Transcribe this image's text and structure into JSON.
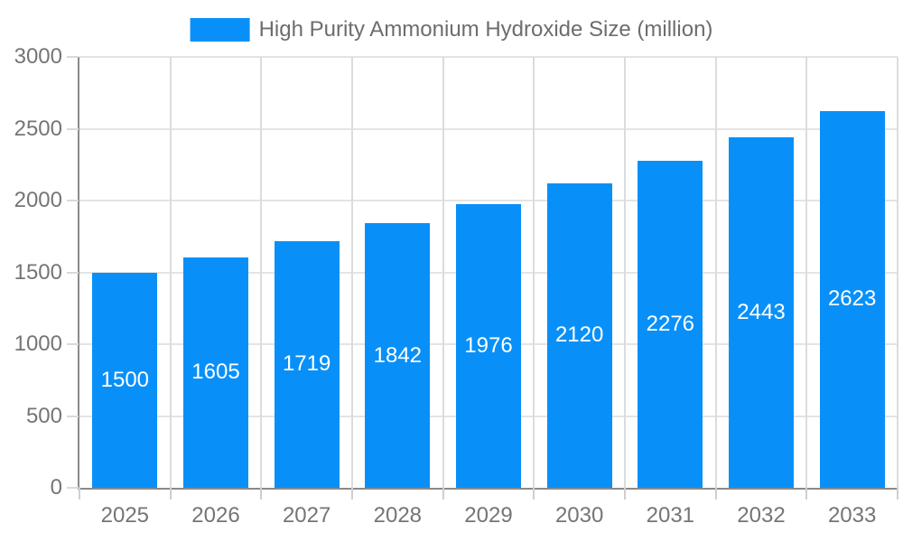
{
  "chart_data": {
    "type": "bar",
    "title": "High Purity Ammonium Hydroxide Size (million)",
    "legend": [
      "High Purity Ammonium Hydroxide Size (million)"
    ],
    "legend_position": "top",
    "categories": [
      "2025",
      "2026",
      "2027",
      "2028",
      "2029",
      "2030",
      "2031",
      "2032",
      "2033"
    ],
    "values": [
      1500,
      1605,
      1719,
      1842,
      1976,
      2120,
      2276,
      2443,
      2623
    ],
    "xlabel": "",
    "ylabel": "",
    "ylim": [
      0,
      3000
    ],
    "yticks": [
      0,
      500,
      1000,
      1500,
      2000,
      2500,
      3000
    ],
    "grid": true,
    "bar_color": "#0990f8",
    "value_label_color": "#ffffff",
    "axis_text_color": "#757575",
    "legend_text_color": "#6d6d6d"
  }
}
